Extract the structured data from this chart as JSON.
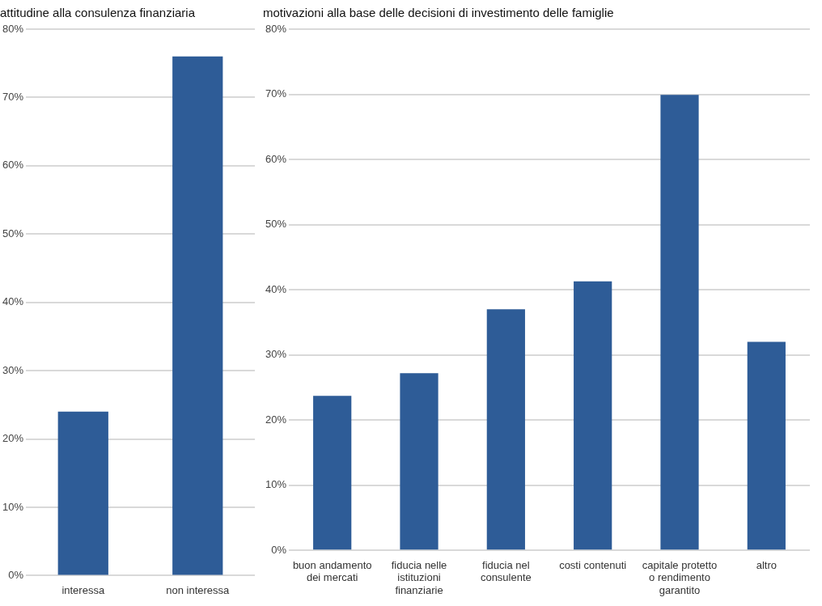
{
  "chart_data": [
    {
      "type": "bar",
      "title": "attitudine alla consulenza finanziaria",
      "categories": [
        "interessa",
        "non interessa"
      ],
      "values": [
        24,
        76
      ],
      "color": "#2e5c97",
      "ylim": [
        0,
        80
      ],
      "yticks": [
        {
          "value": 0,
          "label": "0%"
        },
        {
          "value": 10,
          "label": "10%"
        },
        {
          "value": 20,
          "label": "20%"
        },
        {
          "value": 30,
          "label": "30%"
        },
        {
          "value": 40,
          "label": "40%"
        },
        {
          "value": 50,
          "label": "50%"
        },
        {
          "value": 60,
          "label": "60%"
        },
        {
          "value": 70,
          "label": "70%"
        },
        {
          "value": 80,
          "label": "80%"
        }
      ],
      "grid": "y",
      "legend": false
    },
    {
      "type": "bar",
      "title": "motivazioni alla base delle decisioni di investimento delle famiglie",
      "categories": [
        "buon andamento dei mercati",
        "fiducia nelle istituzioni finanziarie",
        "fiducia nel consulente",
        "costi contenuti",
        "capitale protetto o rendimento garantito",
        "altro"
      ],
      "values": [
        23.7,
        27.2,
        37,
        41.3,
        69.9,
        32
      ],
      "color": "#2e5c97",
      "ylim": [
        0,
        80
      ],
      "yticks": [
        {
          "value": 0,
          "label": "0%"
        },
        {
          "value": 10,
          "label": "10%"
        },
        {
          "value": 20,
          "label": "20%"
        },
        {
          "value": 30,
          "label": "30%"
        },
        {
          "value": 40,
          "label": "40%"
        },
        {
          "value": 50,
          "label": "50%"
        },
        {
          "value": 60,
          "label": "60%"
        },
        {
          "value": 70,
          "label": "70%"
        },
        {
          "value": 80,
          "label": "80%"
        }
      ],
      "grid": "y",
      "legend": false
    }
  ]
}
